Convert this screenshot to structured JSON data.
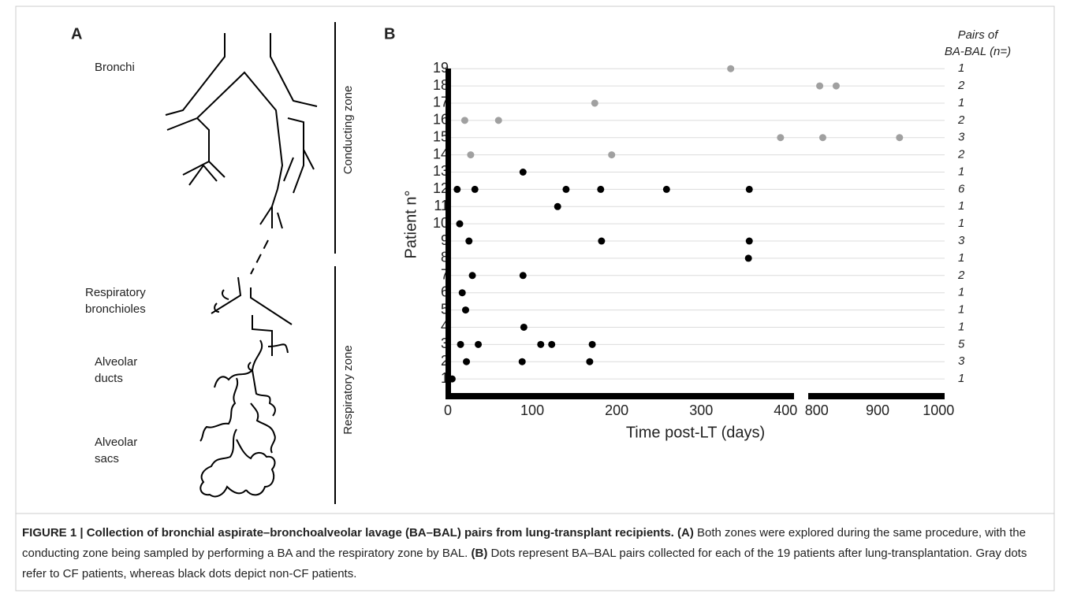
{
  "panel_a": {
    "label": "A",
    "bronchi": "Bronchi",
    "resp_bronchioles": [
      "Respiratory",
      "bronchioles"
    ],
    "alv_ducts": [
      "Alveolar",
      "ducts"
    ],
    "alv_sacs": [
      "Alveolar",
      "sacs"
    ],
    "conducting_zone": "Conducting zone",
    "respiratory_zone": "Respiratory zone"
  },
  "chart_data": {
    "type": "scatter",
    "panel_label": "B",
    "xlabel": "Time post-LT (days)",
    "ylabel": "Patient n°",
    "x_segments": [
      [
        0,
        410
      ],
      [
        790,
        1010
      ]
    ],
    "xticks": [
      0,
      100,
      200,
      300,
      400,
      800,
      900,
      1000
    ],
    "ylim": [
      0,
      19.1
    ],
    "yticks": [
      1,
      2,
      3,
      4,
      5,
      6,
      7,
      8,
      9,
      10,
      11,
      12,
      13,
      14,
      15,
      16,
      17,
      18,
      19
    ],
    "grid": true,
    "series": [
      {
        "color": "#a0a0a0",
        "x": [
          335,
          805,
          832,
          174,
          20,
          60,
          394,
          810,
          936,
          27,
          194
        ],
        "y": [
          19,
          18,
          18,
          17,
          16,
          16,
          15,
          15,
          15,
          14,
          14
        ]
      },
      {
        "color": "#000000",
        "x": [
          89,
          11,
          32,
          140,
          181,
          259,
          357,
          130,
          14,
          25,
          182,
          357,
          356,
          29,
          89,
          17,
          21,
          90,
          15,
          36,
          110,
          123,
          171,
          22,
          88,
          168,
          5
        ],
        "y": [
          13,
          12,
          12,
          12,
          12,
          12,
          12,
          11,
          10,
          9,
          9,
          9,
          8,
          7,
          7,
          6,
          5,
          4,
          3,
          3,
          3,
          3,
          3,
          2,
          2,
          2,
          1
        ]
      }
    ],
    "pairs_title": [
      "Pairs of",
      "BA-BAL (n=)"
    ],
    "pairs": [
      1,
      3,
      5,
      1,
      1,
      1,
      2,
      1,
      3,
      1,
      1,
      6,
      1,
      2,
      3,
      2,
      1,
      2,
      1
    ]
  },
  "caption": {
    "title": "FIGURE 1 | Collection of bronchial aspirate–bronchoalveolar lavage (BA–BAL) pairs from lung-transplant recipients.",
    "parts": [
      {
        "label": "(A)",
        "text": "Both zones were explored during the same procedure, with the conducting zone being sampled by performing a BA and the respiratory zone by BAL."
      },
      {
        "label": "(B)",
        "text": "Dots represent BA–BAL pairs collected for each of the 19 patients after lung-transplantation. Gray dots refer to CF patients, whereas black dots depict non-CF patients."
      }
    ]
  }
}
